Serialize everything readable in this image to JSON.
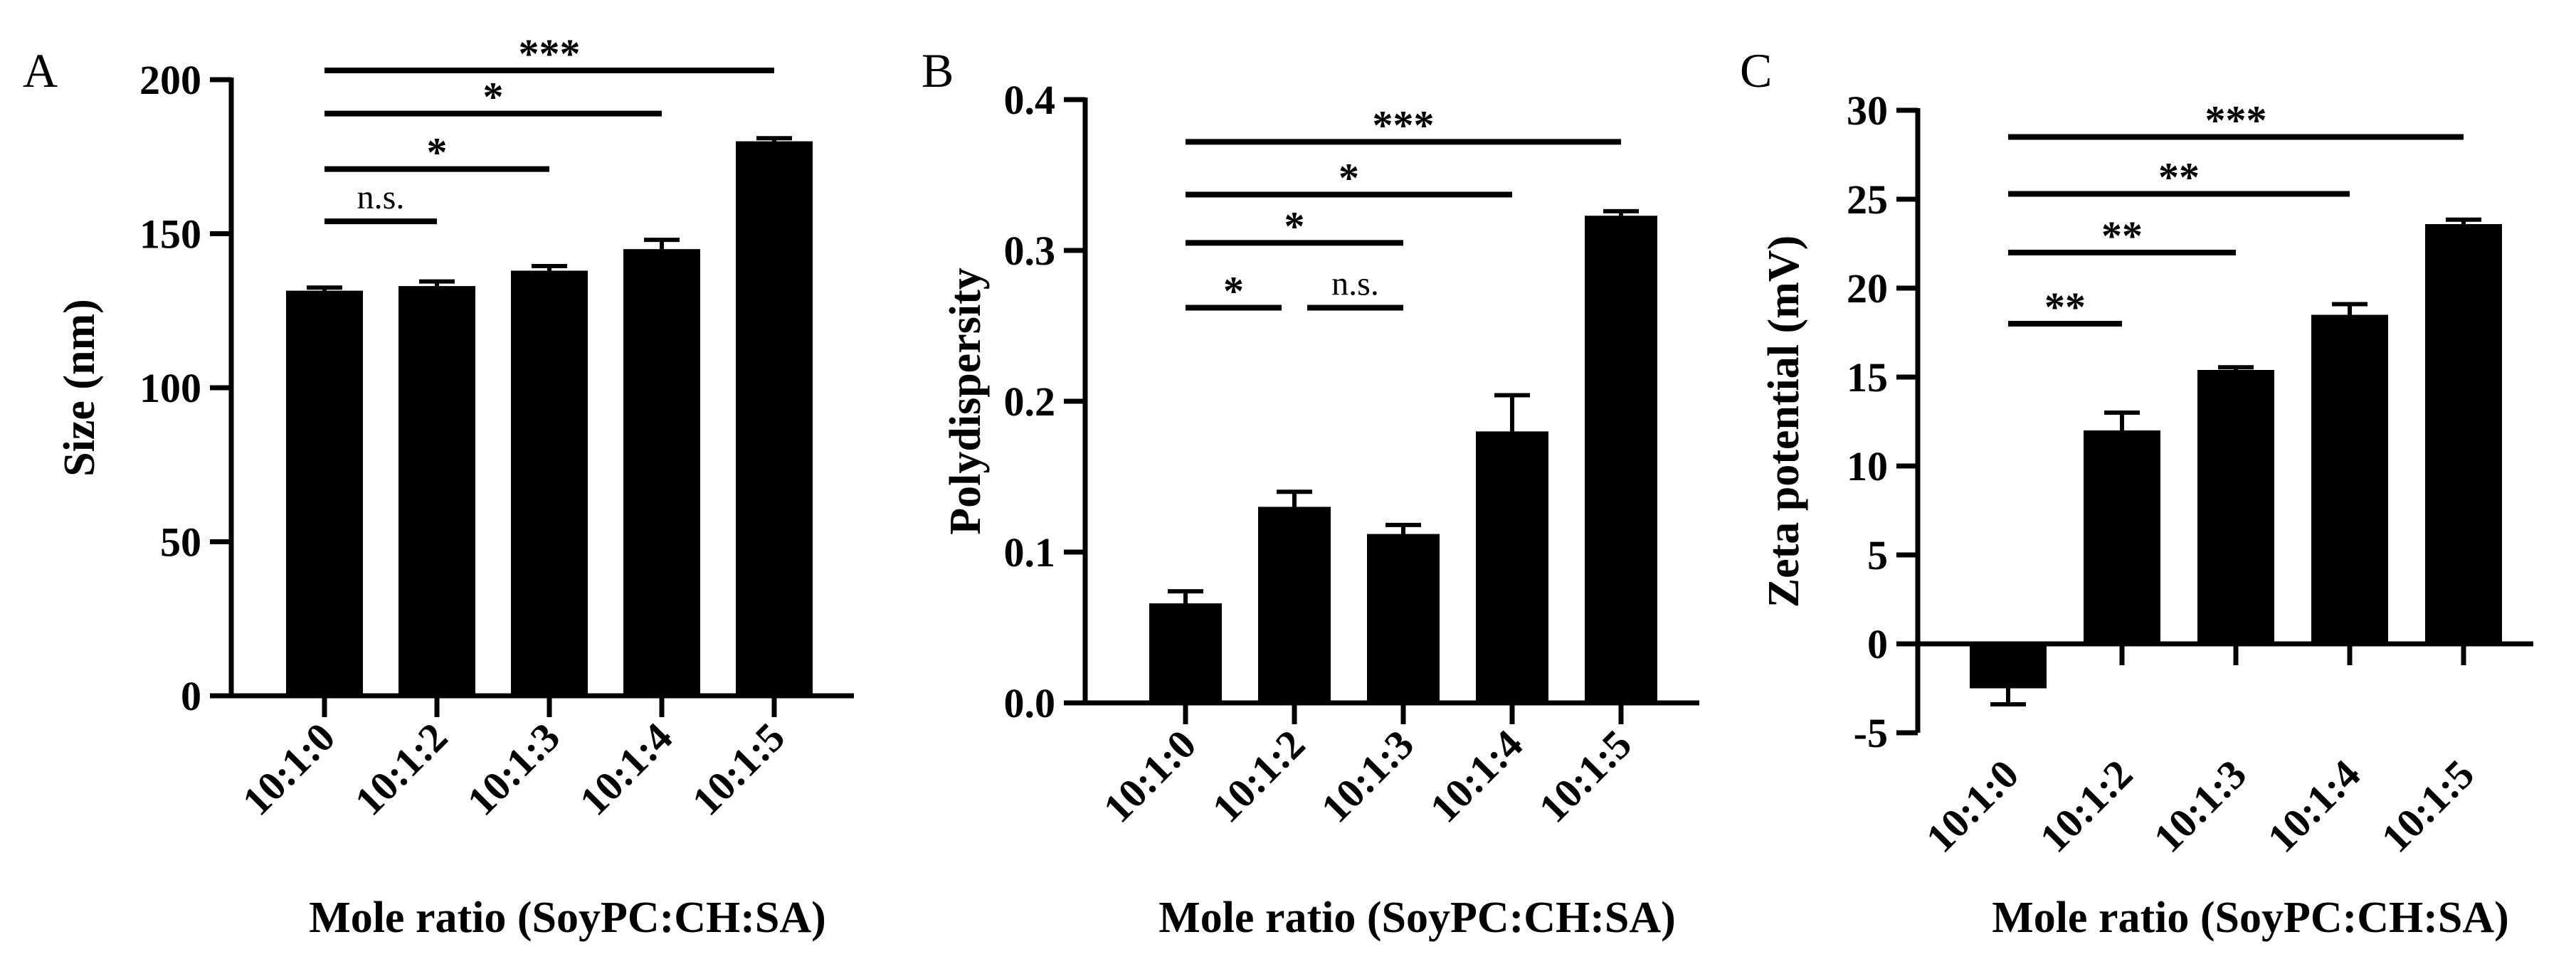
{
  "colors": {
    "bar": "#000000",
    "background": "#ffffff"
  },
  "chart_data": [
    {
      "type": "bar",
      "panel": "A",
      "ylabel": "Size (nm)",
      "xlabel": "Mole ratio (SoyPC:CH:SA)",
      "categories": [
        "10:1:0",
        "10:1:2",
        "10:1:3",
        "10:1:4",
        "10:1:5"
      ],
      "values": [
        131.5,
        133,
        138,
        145,
        180
      ],
      "errors": [
        1,
        1.5,
        1.5,
        3,
        1
      ],
      "ylim": [
        0,
        200
      ],
      "yticks": [
        0,
        50,
        100,
        150,
        200
      ],
      "ytick_labels": [
        "0",
        "50",
        "100",
        "150",
        "200"
      ],
      "significance": [
        {
          "from": 0,
          "to": 1,
          "label": "n.s.",
          "y": 154
        },
        {
          "from": 0,
          "to": 2,
          "label": "*",
          "y": 171
        },
        {
          "from": 0,
          "to": 3,
          "label": "*",
          "y": 189
        },
        {
          "from": 0,
          "to": 4,
          "label": "***",
          "y": 203
        }
      ]
    },
    {
      "type": "bar",
      "panel": "B",
      "ylabel": "Polydispersity",
      "xlabel": "Mole ratio (SoyPC:CH:SA)",
      "categories": [
        "10:1:0",
        "10:1:2",
        "10:1:3",
        "10:1:4",
        "10:1:5"
      ],
      "values": [
        0.066,
        0.13,
        0.112,
        0.18,
        0.323
      ],
      "errors": [
        0.008,
        0.01,
        0.006,
        0.024,
        0.003
      ],
      "ylim": [
        0,
        0.4
      ],
      "yticks": [
        0,
        0.1,
        0.2,
        0.3,
        0.4
      ],
      "ytick_labels": [
        "0.0",
        "0.1",
        "0.2",
        "0.3",
        "0.4"
      ],
      "significance": [
        {
          "from": 0,
          "to": 1,
          "label": "*",
          "y": 0.262
        },
        {
          "from": 1,
          "to": 2,
          "label": "n.s.",
          "y": 0.262
        },
        {
          "from": 0,
          "to": 2,
          "label": "*",
          "y": 0.305
        },
        {
          "from": 0,
          "to": 3,
          "label": "*",
          "y": 0.337
        },
        {
          "from": 0,
          "to": 4,
          "label": "***",
          "y": 0.372
        }
      ]
    },
    {
      "type": "bar",
      "panel": "C",
      "ylabel": "Zeta potential (mV)",
      "xlabel": "Mole ratio (SoyPC:CH:SA)",
      "categories": [
        "10:1:0",
        "10:1:2",
        "10:1:3",
        "10:1:4",
        "10:1:5"
      ],
      "values": [
        -2.5,
        12,
        15.4,
        18.5,
        23.6
      ],
      "errors": [
        0.9,
        1,
        0.15,
        0.6,
        0.25
      ],
      "ylim": [
        -5,
        30
      ],
      "yticks": [
        -5,
        0,
        5,
        10,
        15,
        20,
        25,
        30
      ],
      "ytick_labels": [
        "-5",
        "0",
        "5",
        "10",
        "15",
        "20",
        "25",
        "30"
      ],
      "significance": [
        {
          "from": 0,
          "to": 1,
          "label": "**",
          "y": 18
        },
        {
          "from": 0,
          "to": 2,
          "label": "**",
          "y": 22
        },
        {
          "from": 0,
          "to": 3,
          "label": "**",
          "y": 25.3
        },
        {
          "from": 0,
          "to": 4,
          "label": "***",
          "y": 28.5
        }
      ]
    }
  ]
}
